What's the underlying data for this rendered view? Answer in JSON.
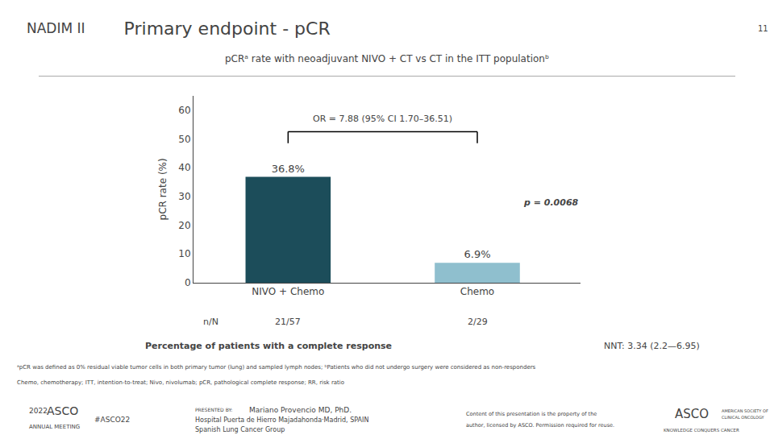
{
  "chart_data": {
    "type": "bar",
    "badge": "NADIM II",
    "title": "Primary endpoint - pCR",
    "page_number": "11",
    "subtitle": "pCRᵃ rate with neoadjuvant NIVO + CT vs CT in the ITT populationᵇ",
    "categories": [
      "NIVO + Chemo",
      "Chemo"
    ],
    "values": [
      36.8,
      6.9
    ],
    "value_labels": [
      "36.8%",
      "6.9%"
    ],
    "data_labels": true,
    "colors": [
      "#1c4d5a",
      "#8fbfce"
    ],
    "ylabel": "pCR rate (%)",
    "ylim": [
      0,
      65
    ],
    "yticks": [
      0,
      10,
      20,
      30,
      40,
      50,
      60
    ],
    "grid": false,
    "or_text": "OR = 7.88 (95% CI 1.70–36.51)",
    "p_text": "p = 0.0068",
    "nn_label": "n/N",
    "n_labels": [
      "21/57",
      "2/29"
    ],
    "pct_text": "Percentage of patients with a complete response",
    "nnt_text": "NNT: 3.34 (2.2—6.95)",
    "footnotes": [
      "ᵃpCR was defined as 0% residual viable tumor cells in both primary tumor (lung) and sampled lymph nodes; ᵇPatients who did not undergo surgery were considered as non-responders",
      "Chemo, chemotherapy; ITT, intention-to-treat; Nivo, nivolumab; pCR, pathological complete response; RR, risk ratio"
    ],
    "footer": [
      "2022",
      "ASCO",
      "ANNUAL MEETING",
      "#ASCO22",
      "PRESENTED BY:",
      "Mariano Provencio MD, PhD.",
      "Hospital Puerta de Hierro Majadahonda·Madrid, SPAIN",
      "Spanish Lung Cancer Group",
      "Content of this presentation is the property of the",
      "author, licensed by ASCO. Permission required for reuse.",
      "ASCO",
      "AMERICAN SOCIETY OF",
      "CLINICAL ONCOLOGY",
      "KNOWLEDGE CONQUERS CANCER"
    ]
  }
}
